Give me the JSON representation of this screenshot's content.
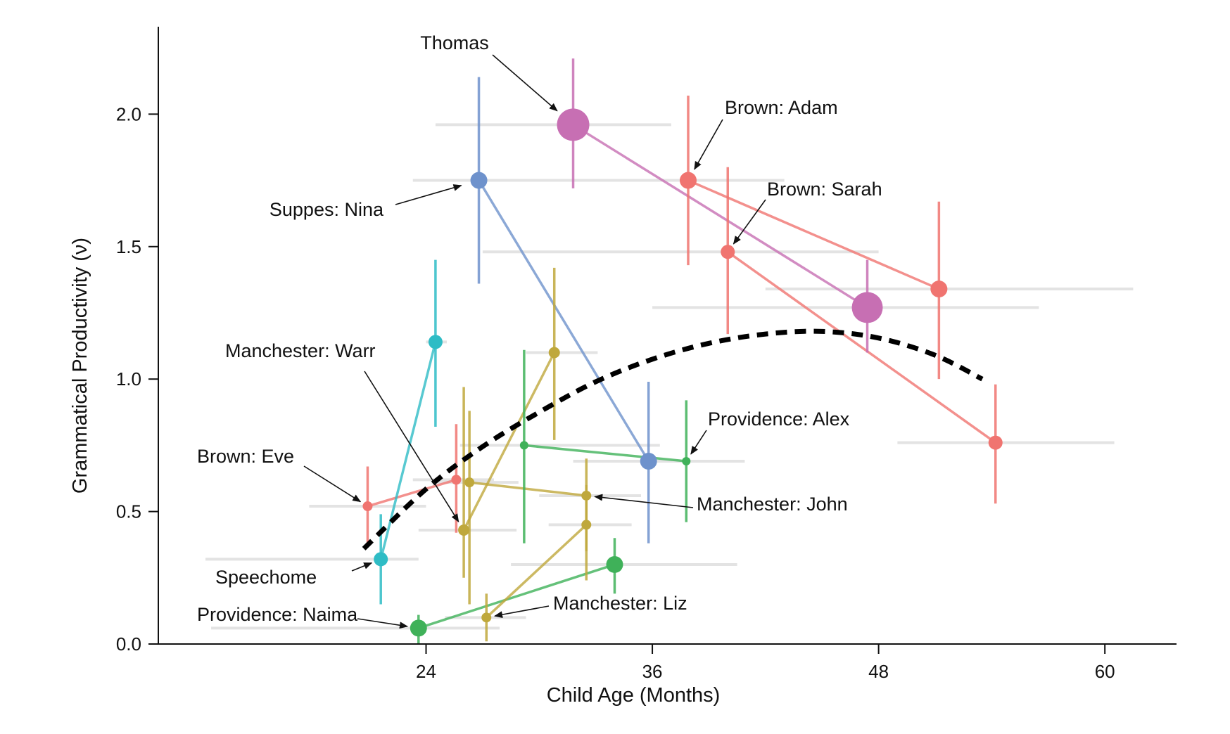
{
  "chart_data": {
    "type": "scatter",
    "title": "",
    "xlabel": "Child Age (Months)",
    "ylabel": "Grammatical Productivity (ν)",
    "xlim": [
      9.8,
      63.8
    ],
    "ylim": [
      0,
      2.33
    ],
    "x_ticks": [
      24,
      36,
      48,
      60
    ],
    "y_ticks": [
      0.0,
      0.5,
      1.0,
      1.5,
      2.0
    ],
    "x_tick_labels": [
      "24",
      "36",
      "48",
      "60"
    ],
    "y_tick_labels": [
      "0.0",
      "0.5",
      "1.0",
      "1.5",
      "2.0"
    ],
    "grid": false,
    "legend": "none",
    "trend": {
      "style": "dashed",
      "color": "#000000",
      "x": [
        20.7,
        24,
        27,
        30,
        33,
        36,
        39,
        42,
        45,
        48,
        51,
        53.5
      ],
      "y": [
        0.36,
        0.585,
        0.745,
        0.875,
        0.99,
        1.075,
        1.135,
        1.17,
        1.18,
        1.155,
        1.09,
        1.0
      ]
    },
    "series": [
      {
        "name": "Thomas",
        "color": "#c76fb3",
        "points": [
          {
            "x": 31.8,
            "y": 1.96,
            "x_err": [
              24.5,
              37.0
            ],
            "y_err": [
              1.72,
              2.21
            ],
            "size": 23
          },
          {
            "x": 47.4,
            "y": 1.27,
            "x_err": [
              36.0,
              56.5
            ],
            "y_err": [
              1.1,
              1.45
            ],
            "size": 22
          }
        ]
      },
      {
        "name": "Suppes: Nina",
        "color": "#6e92cc",
        "points": [
          {
            "x": 26.8,
            "y": 1.75,
            "x_err": [
              23.3,
              42.5
            ],
            "y_err": [
              1.36,
              2.14
            ],
            "size": 12
          },
          {
            "x": 35.8,
            "y": 0.69,
            "x_err": [
              31.8,
              39.3
            ],
            "y_err": [
              0.38,
              0.99
            ],
            "size": 12
          }
        ]
      },
      {
        "name": "Brown: Adam",
        "color": "#f07470",
        "points": [
          {
            "x": 37.9,
            "y": 1.75,
            "x_err": [
              33.0,
              43.0
            ],
            "y_err": [
              1.43,
              2.07
            ],
            "size": 12
          },
          {
            "x": 51.2,
            "y": 1.34,
            "x_err": [
              42.0,
              61.5
            ],
            "y_err": [
              1.0,
              1.67
            ],
            "size": 12
          }
        ]
      },
      {
        "name": "Brown: Sarah",
        "color": "#f07470",
        "points": [
          {
            "x": 40.0,
            "y": 1.48,
            "x_err": [
              27.0,
              48.0
            ],
            "y_err": [
              1.17,
              1.8
            ],
            "size": 10
          },
          {
            "x": 54.2,
            "y": 0.76,
            "x_err": [
              49.0,
              60.5
            ],
            "y_err": [
              0.53,
              0.98
            ],
            "size": 10
          }
        ]
      },
      {
        "name": "Brown: Eve",
        "color": "#f07470",
        "points": [
          {
            "x": 20.9,
            "y": 0.52,
            "x_err": [
              17.8,
              24.0
            ],
            "y_err": [
              0.37,
              0.67
            ],
            "size": 7
          },
          {
            "x": 25.6,
            "y": 0.62,
            "x_err": [
              23.3,
              27.6
            ],
            "y_err": [
              0.42,
              0.83
            ],
            "size": 7
          }
        ]
      },
      {
        "name": "Speechome",
        "color": "#2ebcc5",
        "points": [
          {
            "x": 21.6,
            "y": 0.32,
            "x_err": [
              12.3,
              23.6
            ],
            "y_err": [
              0.15,
              0.49
            ],
            "size": 10
          },
          {
            "x": 24.5,
            "y": 1.14,
            "x_err": [
              24.0,
              25.1
            ],
            "y_err": [
              0.82,
              1.45
            ],
            "size": 10
          }
        ]
      },
      {
        "name": "Providence: Naima",
        "color": "#3fb159",
        "points": [
          {
            "x": 23.6,
            "y": 0.06,
            "x_err": [
              12.6,
              27.9
            ],
            "y_err": [
              0.0,
              0.11
            ],
            "size": 12
          },
          {
            "x": 34.0,
            "y": 0.3,
            "x_err": [
              28.5,
              40.5
            ],
            "y_err": [
              0.19,
              0.4
            ],
            "size": 12
          }
        ]
      },
      {
        "name": "Providence: Alex",
        "color": "#3fb159",
        "points": [
          {
            "x": 29.2,
            "y": 0.75,
            "x_err": [
              25.8,
              36.4
            ],
            "y_err": [
              0.38,
              1.11
            ],
            "size": 6
          },
          {
            "x": 37.8,
            "y": 0.69,
            "x_err": [
              31.9,
              40.9
            ],
            "y_err": [
              0.46,
              0.92
            ],
            "size": 6
          }
        ]
      },
      {
        "name": "Manchester: Warr",
        "color": "#bfa83c",
        "points": [
          {
            "x": 26.0,
            "y": 0.43,
            "x_err": [
              23.6,
              28.8
            ],
            "y_err": [
              0.25,
              0.97
            ],
            "size": 8
          },
          {
            "x": 30.8,
            "y": 1.1,
            "x_err": [
              29.3,
              33.1
            ],
            "y_err": [
              0.77,
              1.42
            ],
            "size": 8
          }
        ]
      },
      {
        "name": "Manchester: John",
        "color": "#bfa83c",
        "points": [
          {
            "x": 26.3,
            "y": 0.61,
            "x_err": [
              24.3,
              28.9
            ],
            "y_err": [
              0.15,
              0.88
            ],
            "size": 7
          },
          {
            "x": 32.5,
            "y": 0.56,
            "x_err": [
              30.0,
              35.4
            ],
            "y_err": [
              0.35,
              0.7
            ],
            "size": 7
          }
        ]
      },
      {
        "name": "Manchester: Liz",
        "color": "#bfa83c",
        "points": [
          {
            "x": 27.2,
            "y": 0.1,
            "x_err": [
              25.0,
              29.3
            ],
            "y_err": [
              0.01,
              0.19
            ],
            "size": 7
          },
          {
            "x": 32.5,
            "y": 0.45,
            "x_err": [
              30.5,
              34.9
            ],
            "y_err": [
              0.24,
              0.6
            ],
            "size": 7
          }
        ]
      }
    ],
    "annotations": [
      {
        "text": "Thomas",
        "series": "Thomas",
        "point": 0,
        "arrow": true
      },
      {
        "text": "Suppes: Nina",
        "series": "Suppes: Nina",
        "point": 0,
        "arrow": true
      },
      {
        "text": "Brown: Adam",
        "series": "Brown: Adam",
        "point": 0,
        "arrow": true
      },
      {
        "text": "Brown: Sarah",
        "series": "Brown: Sarah",
        "point": 0,
        "arrow": true
      },
      {
        "text": "Manchester: Warr",
        "series": "Manchester: Warr",
        "point": 0,
        "arrow": true
      },
      {
        "text": "Providence: Alex",
        "series": "Providence: Alex",
        "point": 1,
        "arrow": true
      },
      {
        "text": "Brown: Eve",
        "series": "Brown: Eve",
        "point": 0,
        "arrow": true
      },
      {
        "text": "Manchester: John",
        "series": "Manchester: John",
        "point": 1,
        "arrow": true
      },
      {
        "text": "Speechome",
        "series": "Speechome",
        "point": 0,
        "arrow": true
      },
      {
        "text": "Manchester: Liz",
        "series": "Manchester: Liz",
        "point": 0,
        "arrow": true
      },
      {
        "text": "Providence: Naima",
        "series": "Providence: Naima",
        "point": 0,
        "arrow": true
      }
    ]
  }
}
